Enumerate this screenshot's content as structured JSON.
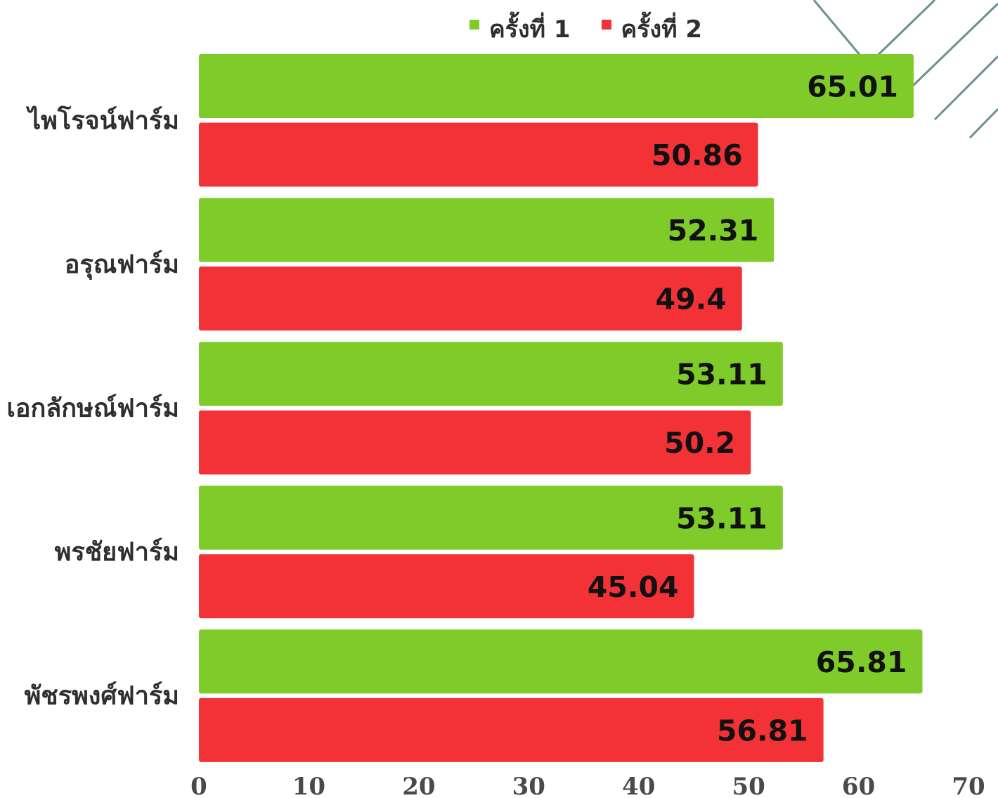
{
  "chart_data": {
    "type": "bar",
    "orientation": "horizontal",
    "title": "",
    "xlabel": "",
    "ylabel": "",
    "categories": [
      "ไพโรจน์ฟาร์ม",
      "อรุณฟาร์ม",
      "เอกลักษณ์ฟาร์ม",
      "พรชัยฟาร์ม",
      "พัชรพงศ์ฟาร์ม"
    ],
    "series": [
      {
        "name": "ครั้งที่ 1",
        "color": "#7fcb2a",
        "values": [
          65.01,
          52.31,
          53.11,
          53.11,
          65.81
        ]
      },
      {
        "name": "ครั้งที่ 2",
        "color": "#f23236",
        "values": [
          50.86,
          49.4,
          50.2,
          45.04,
          56.81
        ]
      }
    ],
    "xlim": [
      0,
      70
    ],
    "xticks": [
      "0",
      "10",
      "20",
      "30",
      "40",
      "50",
      "60",
      "70"
    ],
    "value_labels": [
      [
        "65.01",
        "52.31",
        "53.11",
        "53.11",
        "65.81"
      ],
      [
        "50.86",
        "49.4",
        "50.2",
        "45.04",
        "56.81"
      ]
    ],
    "grid": false,
    "legend_position": "top-right",
    "decoration_color": "#6d8f94"
  }
}
